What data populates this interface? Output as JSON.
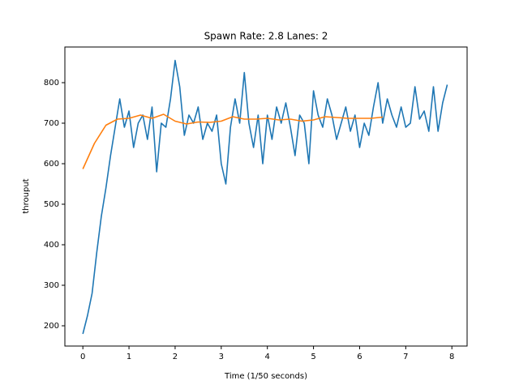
{
  "chart_data": {
    "type": "line",
    "title": "Spawn Rate: 2.8    Lanes: 2",
    "xlabel": "Time (1/50 seconds)",
    "ylabel": "throuput",
    "xlim": [
      -0.39,
      8.33
    ],
    "ylim": [
      150,
      888
    ],
    "xticks": [
      0,
      1,
      2,
      3,
      4,
      5,
      6,
      7,
      8
    ],
    "yticks": [
      200,
      300,
      400,
      500,
      600,
      700,
      800
    ],
    "grid": false,
    "series": [
      {
        "color": "#1f77b4",
        "x": [
          0,
          0.1,
          0.2,
          0.3,
          0.4,
          0.5,
          0.6,
          0.7,
          0.8,
          0.9,
          1,
          1.1,
          1.2,
          1.3,
          1.4,
          1.5,
          1.6,
          1.7,
          1.8,
          1.9,
          2,
          2.1,
          2.2,
          2.3,
          2.4,
          2.5,
          2.6,
          2.7,
          2.8,
          2.9,
          3,
          3.1,
          3.2,
          3.3,
          3.4,
          3.5,
          3.6,
          3.7,
          3.8,
          3.9,
          4,
          4.1,
          4.2,
          4.3,
          4.4,
          4.5,
          4.6,
          4.7,
          4.8,
          4.9,
          5,
          5.1,
          5.2,
          5.3,
          5.4,
          5.5,
          5.6,
          5.7,
          5.8,
          5.9,
          6,
          6.1,
          6.2,
          6.3,
          6.4,
          6.5,
          6.6,
          6.7,
          6.8,
          6.9,
          7,
          7.1,
          7.2,
          7.3,
          7.4,
          7.5,
          7.6,
          7.7,
          7.8,
          7.9
        ],
        "values": [
          180,
          225,
          280,
          380,
          470,
          540,
          620,
          690,
          760,
          690,
          730,
          640,
          700,
          720,
          660,
          740,
          580,
          700,
          690,
          760,
          855,
          790,
          670,
          720,
          700,
          740,
          660,
          700,
          680,
          720,
          600,
          550,
          690,
          760,
          700,
          825,
          700,
          640,
          720,
          600,
          720,
          660,
          740,
          700,
          750,
          690,
          620,
          720,
          700,
          600,
          780,
          720,
          690,
          760,
          720,
          660,
          700,
          740,
          680,
          720,
          640,
          700,
          670,
          740,
          800,
          700,
          760,
          720,
          690,
          740,
          690,
          700,
          790,
          710,
          730,
          680,
          790,
          680,
          750,
          795
        ]
      },
      {
        "color": "#ff7f0e",
        "x": [
          0,
          0.25,
          0.5,
          0.75,
          1,
          1.25,
          1.5,
          1.75,
          2,
          2.25,
          2.5,
          2.75,
          3,
          3.25,
          3.5,
          3.75,
          4,
          4.25,
          4.5,
          4.75,
          5,
          5.25,
          5.5,
          5.75,
          6,
          6.25,
          6.5
        ],
        "values": [
          587,
          650,
          695,
          710,
          712,
          720,
          712,
          722,
          705,
          698,
          703,
          702,
          705,
          716,
          710,
          710,
          712,
          708,
          710,
          705,
          708,
          716,
          714,
          712,
          712,
          712,
          715
        ]
      }
    ]
  }
}
